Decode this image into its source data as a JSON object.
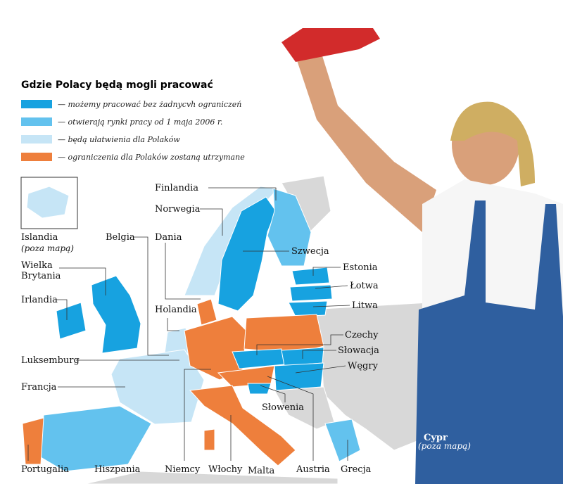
{
  "title": "Gdzie Polacy będą mogli pracować",
  "legend": [
    {
      "label": "— możemy pracować bez żadnycvh ograniczeń",
      "color": "#17a2e0"
    },
    {
      "label": "— otwierają rynki pracy od 1 maja 2006 r.",
      "color": "#63c2ee"
    },
    {
      "label": "— będą ułatwienia dla Polaków",
      "color": "#c6e5f6"
    },
    {
      "label": "— ograniczenia dla Polaków zostaną utrzymane",
      "color": "#ee7f3c"
    }
  ],
  "labels": [
    "Finlandia",
    "Norwegia",
    "Islandia",
    "(poza mapą)",
    "Belgia",
    "Dania",
    "Szwecja",
    "Estonia",
    "Łotwa",
    "Litwa",
    "Wielka Brytania",
    "Irlandia",
    "Holandia",
    "Czechy",
    "Słowacja",
    "Luksemburg",
    "Węgry",
    "Francja",
    "Słowenia",
    "Portugalia",
    "Hiszpania",
    "Niemcy",
    "Włochy",
    "Malta",
    "Austria",
    "Grecja",
    "Cypr",
    "(poza mapą)"
  ]
}
